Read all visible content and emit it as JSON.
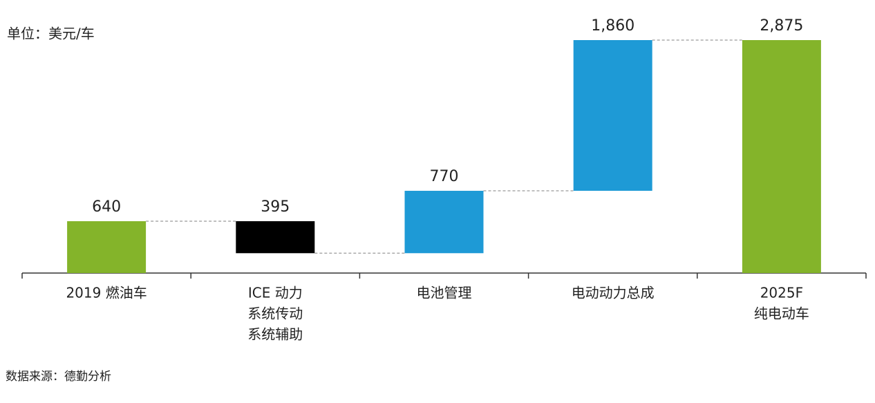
{
  "chart_data": {
    "type": "waterfall",
    "unit": "单位：美元/车",
    "source": "数据来源：德勤分析",
    "categories": [
      [
        "2019 燃油车"
      ],
      [
        "ICE 动力",
        "系统传动",
        "系统辅助"
      ],
      [
        "电池管理"
      ],
      [
        "电动动力总成"
      ],
      [
        "2025F",
        "纯电动车"
      ]
    ],
    "values": [
      640,
      395,
      770,
      1860,
      2875
    ],
    "value_labels": [
      "640",
      "395",
      "770",
      "1,860",
      "2,875"
    ],
    "measures": [
      "total",
      "decrease",
      "increase",
      "increase",
      "total"
    ],
    "colors": [
      "#84b42a",
      "#000000",
      "#1e9ad6",
      "#1e9ad6",
      "#84b42a"
    ]
  }
}
